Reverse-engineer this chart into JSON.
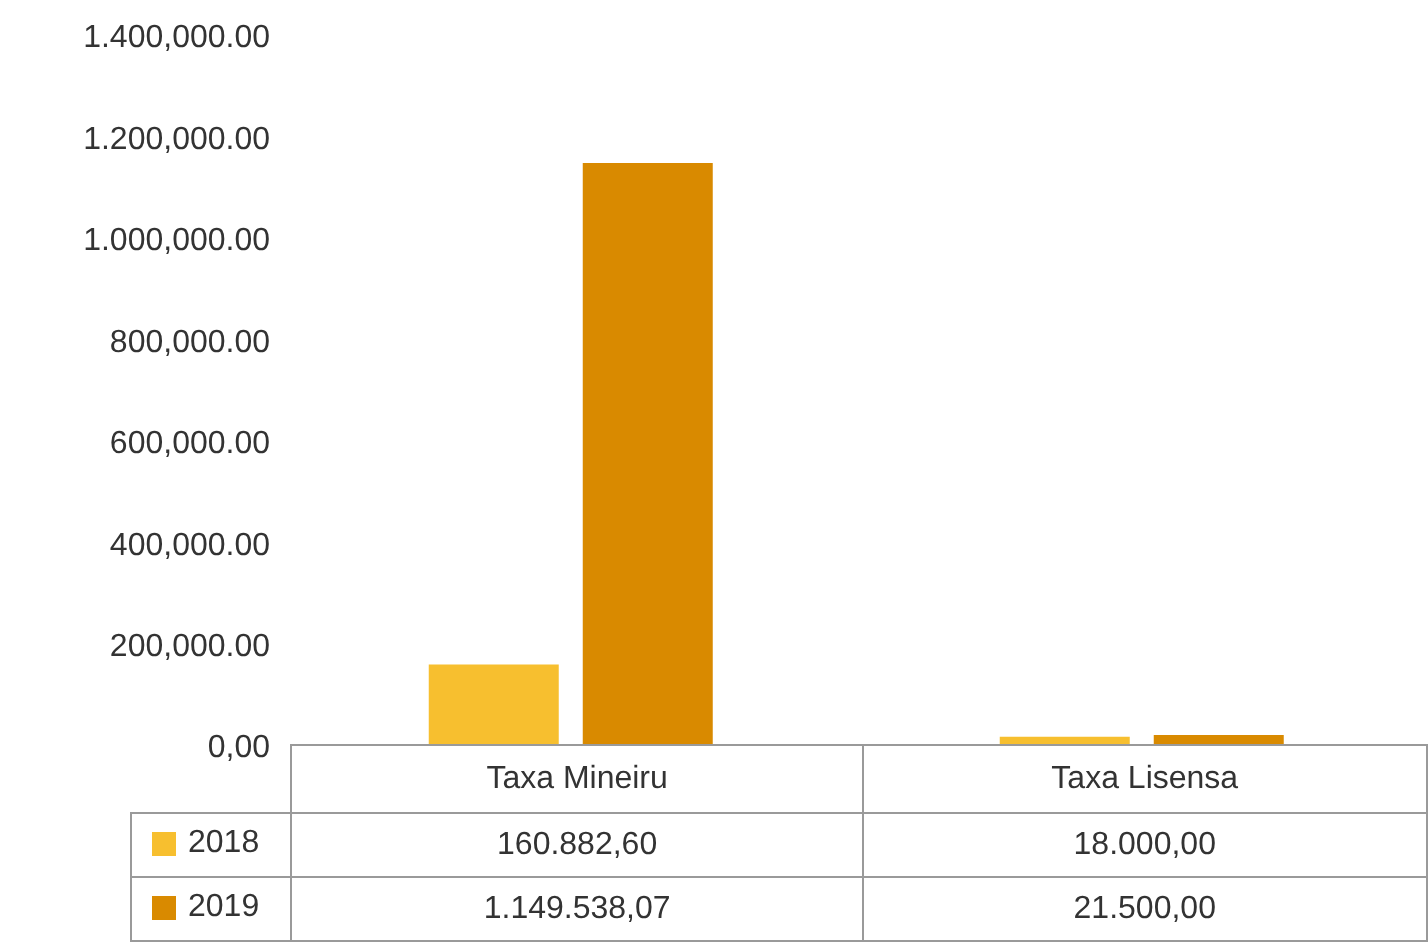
{
  "chart_data": {
    "type": "bar",
    "categories": [
      "Taxa Mineiru",
      "Taxa Lisensa"
    ],
    "series": [
      {
        "name": "2018",
        "color": "#f7bf2f",
        "values": [
          160882.6,
          18000
        ],
        "value_labels": [
          "160.882,60",
          "18.000,00"
        ]
      },
      {
        "name": "2019",
        "color": "#d98a00",
        "values": [
          1149538.07,
          21500
        ],
        "value_labels": [
          "1.149.538,07",
          "21.500,00"
        ]
      }
    ],
    "ylim": [
      0,
      1400000
    ],
    "yticks": [
      {
        "value": 0,
        "label": "0,00"
      },
      {
        "value": 200000,
        "label": "200,000.00"
      },
      {
        "value": 400000,
        "label": "400,000.00"
      },
      {
        "value": 600000,
        "label": "600,000.00"
      },
      {
        "value": 800000,
        "label": "800,000.00"
      },
      {
        "value": 1000000,
        "label": "1.000,000.00"
      },
      {
        "value": 1200000,
        "label": "1.200,000.00"
      },
      {
        "value": 1400000,
        "label": "1.400,000.00"
      }
    ],
    "grid": false,
    "legend": "bottom"
  }
}
